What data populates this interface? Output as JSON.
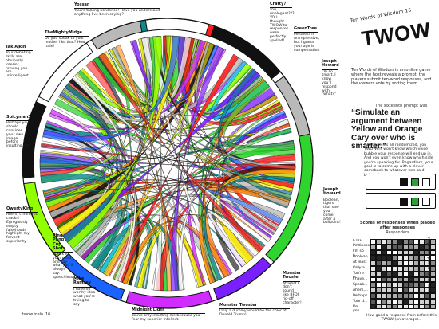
{
  "colors": {
    "red": "#ff1b1b",
    "teal": "#0d8b8b",
    "yellow": "#f7f000",
    "orange": "#ff8c10",
    "white": "#ffffff",
    "black": "#111111",
    "green": "#2fd42f",
    "purple": "#7a20ff",
    "magenta": "#d12cff",
    "blue": "#1b63ff",
    "lime": "#92ff00",
    "gray": "#b9b9b9",
    "cyan": "#00d7ff"
  },
  "callouts": [
    {
      "name": "Yossan",
      "msg": "You're talking nonsense! Have you understood anything I've been saying?"
    },
    {
      "name": "Crafty?",
      "msg": "You, unelegant??? YOU thought TWOW to responses were perfectly spelled!"
    },
    {
      "name": "GreenTree",
      "msg": "Pettiness is unimpressive, but I guess your age is compensation"
    },
    {
      "name": "TheMightyMidge",
      "msg": "Do you speak to your mother like that? How rude!"
    },
    {
      "name": "Tak Ajkin",
      "msg": "Your debating skills are obviously inferior, proving you are unintelligent"
    },
    {
      "name": "Joseph Howard",
      "msg": "I'm so smart, I know you'll respond with \"what?\""
    },
    {
      "name": "Spicyman33",
      "msg": "Perhaps you should consider your own image before insulting me."
    },
    {
      "name": "QwertyKing",
      "msg": "Ahem, chromatic crackr! Egregiously empty falsehoods highlight my fervent superiority."
    },
    {
      "name": "Ping Pong Cup Shots",
      "msg": "Speak for your mind and say what you'll always say: speechless"
    },
    {
      "name": "Mike Ramsey",
      "msg": "I have no worthy idea what you're trying to say"
    },
    {
      "name": "Midnight Light",
      "msg": "You're only insulting me because you fear my superior intellect."
    },
    {
      "name": "Monster Twoster",
      "msg": "Only a dummy would be the color of Donald Trump!"
    },
    {
      "name": "Monster Twoster",
      "msg": "At least I don't sound like BFDI rip-off character!"
    },
    {
      "name": "Joseph Howard",
      "msg": "Boolean, tigers that saw you come after a ballpoint!"
    }
  ],
  "right_panel": {
    "title_small": "Ten Words of Wisdom 16",
    "title_big": "TWOW",
    "description": "Ten Words of Wisdom is an online game where the host reveals a prompt, the players submit ten-word responses, and the viewers vote by sorting them.",
    "prompt_label": "The sixteenth prompt was",
    "prompt_text": "“Simulate an argument between Yellow and Orange Cary over who is smarter.”",
    "hint": "\"Because it's all randomized, you TWOWers won't know which voice bubble your response will end up in. And you won't even know which side you're speaking for. Regardless, your goal is to come up with a clever comeback to whatever was said before.\"",
    "mini_row1": "",
    "mini_row2": "",
    "table_title": "Scores of responses when placed after responses",
    "table_subtitle": "Responders",
    "side_items": [
      "I, int.",
      "Pettiness",
      "I'm so s...",
      "Boolean",
      "At least",
      "Only a...",
      "You're o...",
      "I have...",
      "Speak...",
      "Ahem,...",
      "Perhaps",
      "Your d...",
      "Do you..."
    ],
    "bottom_note": "How good a response from before this TWOW (on average)...",
    "vertical_note": "responses placed before these"
  },
  "footer_left": "twow.icelo '16"
}
